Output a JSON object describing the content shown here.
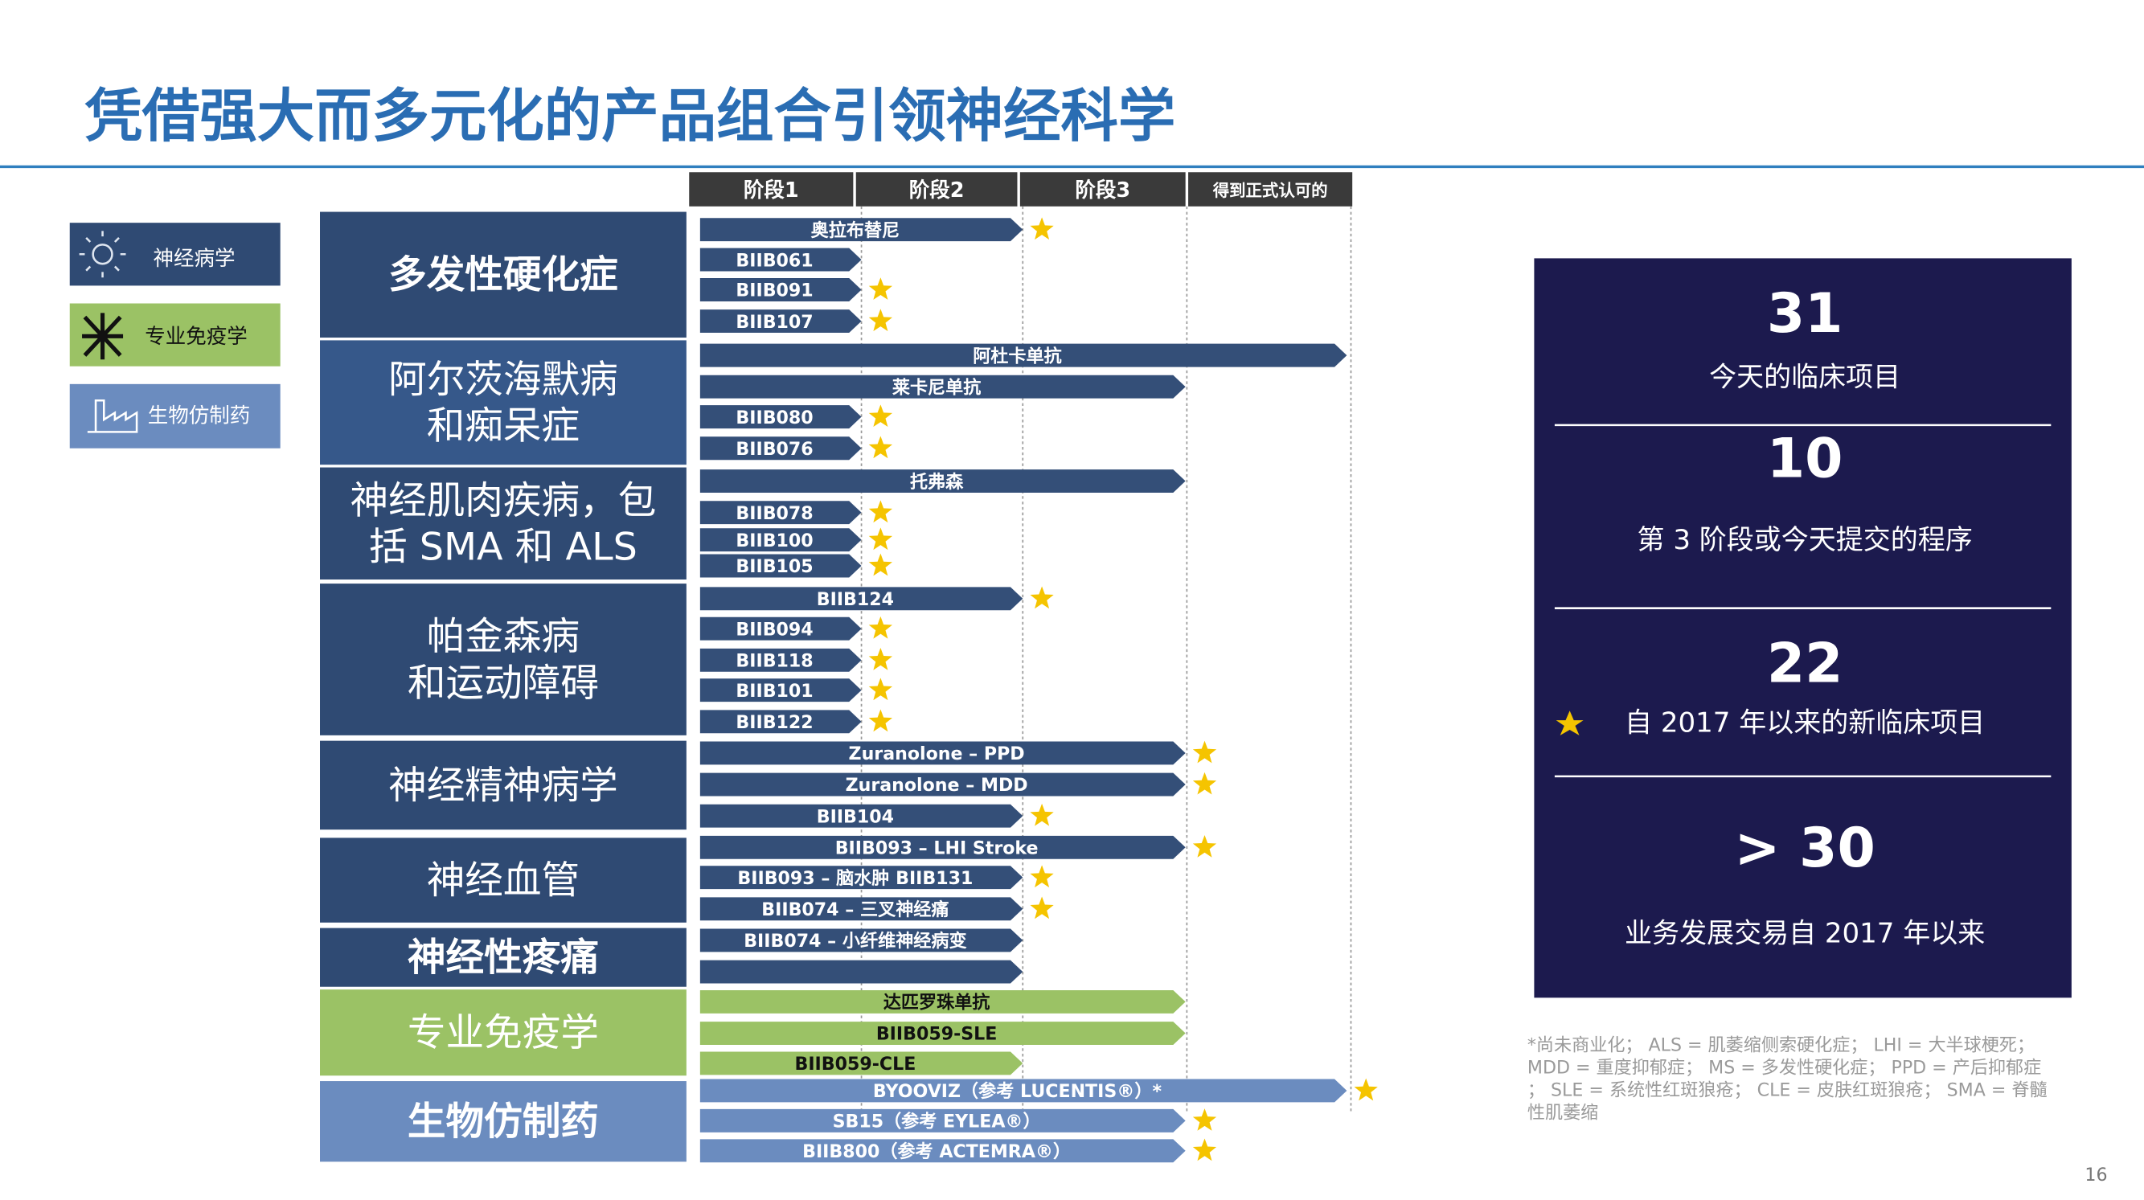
{
  "header": {
    "title": "凭借强大而多元化的产品组合引领神经科学"
  },
  "legend": [
    "神经病学",
    "专业免疫学",
    "生物仿制药"
  ],
  "phases": [
    "阶段1",
    "阶段2",
    "阶段3",
    "得到正式认可的"
  ],
  "categories": [
    [
      "多发性硬化症"
    ],
    [
      "阿尔茨海默病",
      "和痴呆症"
    ],
    [
      "神经肌肉疾病，包",
      "括 SMA 和 ALS"
    ],
    [
      "帕金森病",
      "和运动障碍"
    ],
    [
      "神经精神病学"
    ],
    [
      "神经血管"
    ],
    [
      "神经性疼痛"
    ],
    [
      "专业免疫学"
    ],
    [
      "生物仿制药"
    ]
  ],
  "pipeline": [
    "奥拉布替尼",
    "BIIB061",
    "BIIB091",
    "BIIB107",
    "阿杜卡单抗",
    "莱卡尼单抗",
    "BIIB080",
    "BIIB076",
    "托弗森",
    "BIIB078",
    "BIIB100",
    "BIIB105",
    "BIIB124",
    "BIIB094",
    "BIIB118",
    "BIIB101",
    "BIIB122",
    "Zuranolone – PPD",
    "Zuranolone – MDD",
    "BIIB104",
    "BIIB093 – LHI Stroke",
    "BIIB093 – 脑水肿 BIIB131",
    "BIIB074 – 三叉神经痛",
    "BIIB074 – 小纤维神经病变",
    null,
    "达匹罗珠单抗",
    "BIIB059-SLE",
    "BIIB059-CLE",
    "BYOOVIZ（参考 LUCENTIS®）*",
    "SB15（参考 EYLEA®）",
    "BIIB800（参考 ACTEMRA®）"
  ],
  "stats": [
    {
      "value": 31,
      "label": "今天的临床项目"
    },
    {
      "value": 10,
      "label": "第 3 阶段或今天提交的程序"
    },
    {
      "value": 22,
      "label": "自 2017 年以来的新临床项目"
    },
    {
      "value": "> 30",
      "label": "业务发展交易自 2017 年以来"
    }
  ],
  "footnote": [
    "*尚未商业化； ALS = 肌萎缩侧索硬化症； LHI = 大半球梗死；",
    "MDD = 重度抑郁症； MS = 多发性硬化症； PPD = 产后抑郁症",
    "； SLE = 系统性红斑狼疮； CLE = 皮肤红斑狼疮； SMA = 脊髓",
    "性肌萎缩"
  ],
  "page_number": 16
}
